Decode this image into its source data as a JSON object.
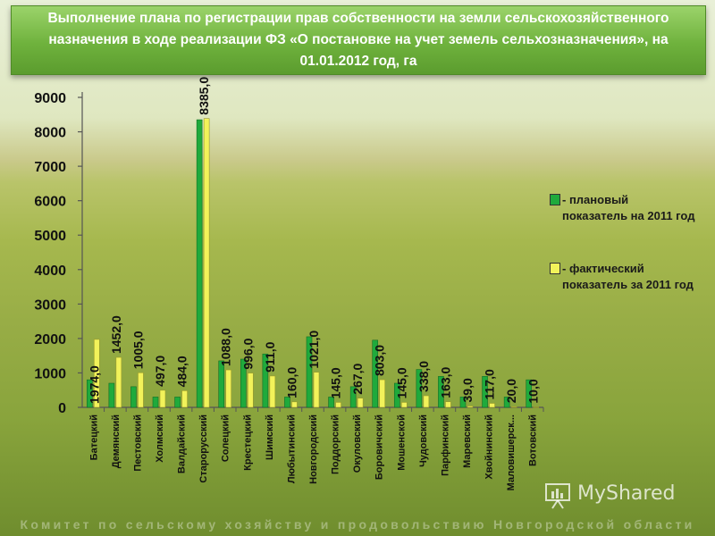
{
  "title": "Выполнение плана по регистрации прав собственности на земли сельскохозяйственного назначения в ходе реализации ФЗ «О постановке на учет земель сельхозназначения», на 01.01.2012 год, га",
  "footer": "Комитет по сельскому хозяйству и продовольствию Новгородской области",
  "watermark": "MyShared",
  "colors": {
    "plan": "#1faa3c",
    "fact": "#f2f25a",
    "title_bg": "#6fb23d"
  },
  "chart_data": {
    "type": "bar",
    "categories": [
      "Батецкий",
      "Демянский",
      "Пестовский",
      "Холмский",
      "Валдайский",
      "Старорусский",
      "Солецкий",
      "Крестецкий",
      "Шимский",
      "Любытинский",
      "Новгородский",
      "Поддорский",
      "Окуловский",
      "Боровичский",
      "Мошенской",
      "Чудовский",
      "Парфинский",
      "Маревский",
      "Хвойнинский",
      "Маловишерск...",
      "Вотовский"
    ],
    "series": [
      {
        "name": "- плановый показатель на 2011 год",
        "values": [
          800,
          700,
          600,
          300,
          300,
          8350,
          1350,
          1400,
          1550,
          300,
          2050,
          300,
          600,
          1950,
          700,
          1100,
          900,
          300,
          900,
          300,
          800
        ]
      },
      {
        "name": "- фактический показатель за 2011 год",
        "values": [
          1974,
          1452,
          1005,
          497,
          484,
          8385,
          1088,
          996,
          911,
          160,
          1021,
          145,
          267,
          803,
          145,
          338,
          163,
          39,
          117,
          20,
          10
        ]
      }
    ],
    "data_labels": [
      "1974,0",
      "1452,0",
      "1005,0",
      "497,0",
      "484,0",
      "8385,0",
      "1088,0",
      "996,0",
      "911,0",
      "160,0",
      "1021,0",
      "145,0",
      "267,0",
      "803,0",
      "145,0",
      "338,0",
      "163,0",
      "39,0",
      "117,0",
      "20,0",
      "10,0"
    ],
    "y_ticks": [
      "0",
      "1000",
      "2000",
      "3000",
      "4000",
      "5000",
      "6000",
      "7000",
      "8000",
      "9000"
    ],
    "ylim": [
      0,
      9000
    ],
    "legend_position": "right",
    "grid": false
  }
}
